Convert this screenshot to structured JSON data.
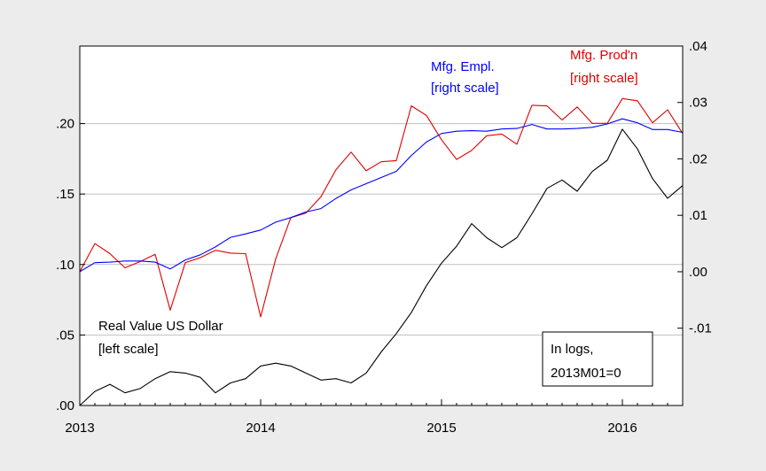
{
  "chart_data": {
    "type": "line",
    "x_start": "2013M01",
    "x_frequency": "monthly",
    "xlim": [
      "2013M01",
      "2016M05"
    ],
    "x_tick_labels": [
      "2013",
      "2014",
      "2015",
      "2016"
    ],
    "left_axis": {
      "ylim": [
        0,
        0.255
      ],
      "tick_labels": [
        ".00",
        ".05",
        ".10",
        ".15",
        ".20"
      ]
    },
    "right_axis": {
      "ylim": [
        -0.0237,
        0.04
      ],
      "tick_labels": [
        "-.01",
        ".00",
        ".01",
        ".02",
        ".03",
        ".04"
      ]
    },
    "grid": "horizontal (left scale)",
    "series": [
      {
        "name": "Real Value US Dollar",
        "label_line2": "[left scale]",
        "axis": "left",
        "color": "#000000",
        "values": [
          0.0,
          0.01,
          0.015,
          0.009,
          0.012,
          0.019,
          0.024,
          0.023,
          0.02,
          0.009,
          0.016,
          0.019,
          0.028,
          0.03,
          0.028,
          0.023,
          0.018,
          0.019,
          0.016,
          0.023,
          0.038,
          0.051,
          0.066,
          0.085,
          0.101,
          0.113,
          0.129,
          0.119,
          0.112,
          0.119,
          0.136,
          0.154,
          0.16,
          0.152,
          0.166,
          0.174,
          0.196,
          0.182,
          0.161,
          0.147,
          0.156
        ]
      },
      {
        "name": "Mfg. Empl.",
        "label_line2": "[right scale]",
        "axis": "right",
        "color": "#0000ff",
        "values": [
          0.0,
          0.0016,
          0.0017,
          0.0019,
          0.0019,
          0.0017,
          0.0005,
          0.0021,
          0.003,
          0.0044,
          0.0061,
          0.0067,
          0.0074,
          0.0088,
          0.0096,
          0.0106,
          0.0112,
          0.013,
          0.0145,
          0.0156,
          0.0167,
          0.0178,
          0.0206,
          0.023,
          0.0245,
          0.0249,
          0.025,
          0.0249,
          0.0253,
          0.0254,
          0.0261,
          0.0253,
          0.0253,
          0.0254,
          0.0256,
          0.0262,
          0.0271,
          0.0264,
          0.0252,
          0.0252,
          0.0247
        ]
      },
      {
        "name": "Mfg. Prod'n",
        "label_line2": "[right scale]",
        "axis": "right",
        "color": "#e00000",
        "values": [
          0.0,
          0.005,
          0.0032,
          0.0007,
          0.0018,
          0.0031,
          -0.0068,
          0.0016,
          0.0025,
          0.0038,
          0.0033,
          0.0032,
          -0.008,
          0.0023,
          0.0096,
          0.0104,
          0.0133,
          0.0181,
          0.0212,
          0.0179,
          0.0195,
          0.0197,
          0.0294,
          0.0277,
          0.0234,
          0.0199,
          0.0215,
          0.0241,
          0.0244,
          0.0226,
          0.0295,
          0.0294,
          0.0269,
          0.0292,
          0.0263,
          0.0263,
          0.0307,
          0.0303,
          0.0264,
          0.0287,
          0.0245
        ]
      }
    ],
    "annotation_box": [
      "In logs,",
      "2013M01=0"
    ]
  },
  "colors": {
    "background": "#ececec",
    "plot_bg": "#ffffff",
    "grid": "#c0c0c0"
  }
}
